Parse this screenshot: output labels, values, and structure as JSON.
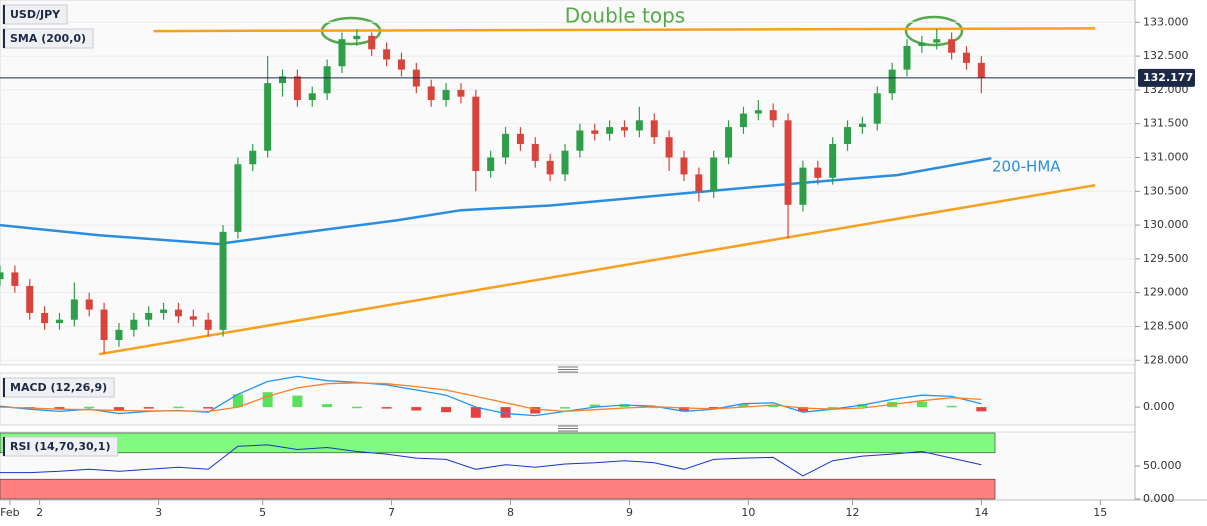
{
  "chart_data": [
    {
      "type": "candlestick",
      "labels": [
        "USD/JPY",
        "SMA (200,0)"
      ],
      "x": [
        0,
        3,
        6,
        9,
        12,
        15,
        18,
        21,
        24,
        27,
        30,
        33,
        36,
        39,
        42,
        45,
        48,
        51,
        54,
        57,
        60,
        63,
        66,
        69,
        72,
        75,
        78,
        81,
        84,
        87,
        90,
        93,
        96,
        99,
        102,
        105,
        108,
        111,
        114,
        117,
        120,
        123,
        126,
        129,
        132,
        135,
        138,
        141,
        144,
        147,
        150,
        153,
        156,
        159,
        162,
        165,
        168,
        171,
        174,
        177,
        180,
        183,
        186,
        189,
        192,
        195,
        198
      ],
      "open": [
        129.2,
        129.3,
        129.1,
        128.7,
        128.55,
        128.6,
        128.9,
        128.75,
        128.3,
        128.45,
        128.6,
        128.7,
        128.75,
        128.65,
        128.6,
        128.45,
        129.9,
        130.9,
        131.1,
        132.1,
        132.2,
        131.85,
        131.95,
        132.35,
        132.75,
        132.8,
        132.6,
        132.45,
        132.3,
        132.05,
        131.85,
        132.0,
        131.9,
        130.8,
        131.0,
        131.35,
        131.2,
        130.95,
        130.75,
        131.1,
        131.4,
        131.35,
        131.45,
        131.4,
        131.55,
        131.3,
        131.0,
        130.75,
        130.5,
        131.0,
        131.45,
        131.65,
        131.7,
        131.55,
        130.3,
        130.85,
        130.7,
        131.2,
        131.45,
        131.5,
        131.95,
        132.3,
        132.65,
        132.7,
        132.75,
        132.55,
        132.4
      ],
      "high": [
        129.4,
        129.4,
        129.2,
        128.8,
        128.7,
        129.15,
        129.0,
        128.85,
        128.55,
        128.7,
        128.8,
        128.85,
        128.85,
        128.75,
        128.7,
        130.0,
        131.0,
        131.2,
        132.5,
        132.3,
        132.3,
        132.05,
        132.45,
        132.85,
        132.9,
        132.85,
        132.7,
        132.55,
        132.4,
        132.15,
        132.1,
        132.1,
        132.0,
        131.1,
        131.45,
        131.45,
        131.3,
        131.05,
        131.2,
        131.5,
        131.5,
        131.55,
        131.55,
        131.75,
        131.65,
        131.4,
        131.1,
        130.85,
        131.1,
        131.55,
        131.75,
        131.85,
        131.8,
        131.65,
        130.95,
        130.95,
        131.3,
        131.55,
        131.6,
        132.05,
        132.4,
        132.75,
        132.8,
        132.9,
        132.85,
        132.65,
        132.5
      ],
      "low": [
        129.1,
        129.0,
        128.6,
        128.45,
        128.45,
        128.5,
        128.65,
        128.1,
        128.2,
        128.35,
        128.5,
        128.6,
        128.55,
        128.5,
        128.35,
        128.35,
        129.8,
        130.8,
        131.0,
        131.9,
        131.75,
        131.75,
        131.85,
        132.25,
        132.65,
        132.5,
        132.35,
        132.2,
        131.95,
        131.75,
        131.75,
        131.8,
        130.5,
        130.7,
        130.9,
        131.1,
        130.85,
        130.65,
        130.65,
        131.0,
        131.25,
        131.25,
        131.3,
        131.3,
        131.2,
        130.8,
        130.65,
        130.35,
        130.4,
        130.9,
        131.35,
        131.55,
        131.45,
        129.8,
        130.2,
        130.6,
        130.6,
        131.1,
        131.35,
        131.4,
        131.85,
        132.2,
        132.55,
        132.6,
        132.45,
        132.3,
        131.95
      ],
      "close": [
        129.3,
        129.1,
        128.7,
        128.55,
        128.6,
        128.9,
        128.75,
        128.3,
        128.45,
        128.6,
        128.7,
        128.75,
        128.65,
        128.6,
        128.45,
        129.9,
        130.9,
        131.1,
        132.1,
        132.2,
        131.85,
        131.95,
        132.35,
        132.75,
        132.8,
        132.6,
        132.45,
        132.3,
        132.05,
        131.85,
        132.0,
        131.9,
        130.8,
        131.0,
        131.35,
        131.2,
        130.95,
        130.75,
        131.1,
        131.4,
        131.35,
        131.45,
        131.4,
        131.55,
        131.3,
        131.0,
        130.75,
        130.5,
        131.0,
        131.45,
        131.65,
        131.7,
        131.55,
        130.3,
        130.85,
        130.7,
        131.2,
        131.45,
        131.5,
        131.95,
        132.3,
        132.65,
        132.7,
        132.75,
        132.55,
        132.4,
        132.18
      ],
      "up_color": "#2e9e48",
      "down_color": "#d9443a",
      "series": [
        {
          "name": "200-HMA",
          "color": "#2a8ee0",
          "x": [
            0,
            20,
            44,
            60,
            80,
            93,
            111,
            141,
            161,
            181,
            200
          ],
          "values": [
            130.0,
            129.85,
            129.72,
            129.88,
            130.07,
            130.22,
            130.29,
            130.49,
            130.62,
            130.74,
            130.99
          ]
        }
      ],
      "trendlines": [
        {
          "color": "#f7a01d",
          "x": [
            31,
            221
          ],
          "values": [
            132.87,
            132.91
          ]
        },
        {
          "color": "#f7a01d",
          "x": [
            20,
            221
          ],
          "values": [
            128.09,
            130.59
          ]
        }
      ],
      "annotations": [
        {
          "text": "Double tops",
          "color": "#55a94a"
        }
      ],
      "last_price": 132.177,
      "price_color": "#1c2a48",
      "xlim": [
        0,
        229
      ],
      "ylim": [
        127.93,
        133.33
      ],
      "yticks": [
        {
          "value": 128,
          "label": "128.000"
        },
        {
          "value": 128.5,
          "label": "128.500"
        },
        {
          "value": 129,
          "label": "129.000"
        },
        {
          "value": 129.5,
          "label": "129.500"
        },
        {
          "value": 130,
          "label": "130.000"
        },
        {
          "value": 130.5,
          "label": "130.500"
        },
        {
          "value": 131,
          "label": "131.000"
        },
        {
          "value": 131.5,
          "label": "131.500"
        },
        {
          "value": 132,
          "label": "132.000"
        },
        {
          "value": 132.5,
          "label": "132.500"
        },
        {
          "value": 133,
          "label": "133.000"
        }
      ],
      "grid": true
    },
    {
      "type": "macd",
      "labels": [
        "MACD (12,26,9)"
      ],
      "x": [
        0,
        6,
        12,
        18,
        24,
        30,
        36,
        42,
        48,
        54,
        60,
        66,
        72,
        78,
        84,
        90,
        96,
        102,
        108,
        114,
        120,
        126,
        132,
        138,
        144,
        150,
        156,
        162,
        168,
        174,
        180,
        186,
        192,
        198
      ],
      "series": [
        {
          "color": "#2196f3",
          "values": [
            0.02,
            -0.05,
            -0.1,
            -0.05,
            -0.15,
            -0.1,
            -0.08,
            -0.12,
            0.3,
            0.6,
            0.72,
            0.62,
            0.58,
            0.52,
            0.4,
            0.28,
            0.0,
            -0.15,
            -0.2,
            -0.1,
            0.0,
            0.05,
            0.02,
            -0.1,
            -0.05,
            0.08,
            0.1,
            -0.12,
            -0.05,
            0.05,
            0.18,
            0.28,
            0.25,
            0.08
          ]
        },
        {
          "color": "#ff7f27",
          "values": [
            0.0,
            -0.02,
            -0.05,
            -0.06,
            -0.08,
            -0.09,
            -0.09,
            -0.1,
            0.0,
            0.25,
            0.45,
            0.55,
            0.57,
            0.55,
            0.48,
            0.4,
            0.25,
            0.1,
            -0.05,
            -0.1,
            -0.06,
            -0.02,
            0.01,
            -0.02,
            -0.04,
            0.0,
            0.05,
            -0.02,
            -0.05,
            -0.02,
            0.06,
            0.15,
            0.22,
            0.18
          ]
        }
      ],
      "histogram": {
        "values": [
          0.02,
          -0.03,
          -0.05,
          0.01,
          -0.07,
          -0.01,
          0.01,
          -0.02,
          0.3,
          0.35,
          0.27,
          0.07,
          0.01,
          -0.03,
          -0.08,
          -0.12,
          -0.25,
          -0.25,
          -0.15,
          0.0,
          0.06,
          0.07,
          0.01,
          -0.08,
          -0.01,
          0.08,
          0.05,
          -0.1,
          0.0,
          0.07,
          0.12,
          0.13,
          0.03,
          -0.1
        ],
        "positive_color": "#3ddc3d",
        "negative_color": "#e02020"
      },
      "xlim": [
        0,
        229
      ],
      "ylim": [
        -0.42,
        0.8
      ],
      "yticks": [
        {
          "value": 0,
          "label": "0.000"
        }
      ]
    },
    {
      "type": "line",
      "labels": [
        "RSI (14,70,30,1)"
      ],
      "x": [
        0,
        6,
        12,
        18,
        24,
        30,
        36,
        42,
        48,
        54,
        60,
        66,
        72,
        78,
        84,
        90,
        96,
        102,
        108,
        114,
        120,
        126,
        132,
        138,
        144,
        150,
        156,
        162,
        168,
        174,
        180,
        186,
        192,
        198
      ],
      "series": [
        {
          "color": "#1836c4",
          "values": [
            40,
            40,
            42,
            45,
            42,
            45,
            48,
            45,
            80,
            82,
            75,
            78,
            72,
            68,
            62,
            60,
            45,
            52,
            48,
            53,
            55,
            58,
            55,
            45,
            60,
            62,
            63,
            35,
            58,
            65,
            68,
            72,
            62,
            52
          ]
        }
      ],
      "bands": [
        {
          "from": 70,
          "to": 100,
          "color": "#80fb80"
        },
        {
          "from": 0,
          "to": 30,
          "color": "#ff8080"
        }
      ],
      "xlim": [
        0,
        229
      ],
      "ylim": [
        -1.5,
        101.5
      ],
      "yticks": [
        {
          "value": 0,
          "label": "0.000"
        },
        {
          "value": 50,
          "label": "50.000"
        }
      ],
      "xticks": [
        {
          "value": 2,
          "label": "Feb"
        },
        {
          "value": 8,
          "label": "2"
        },
        {
          "value": 32,
          "label": "3"
        },
        {
          "value": 53,
          "label": "5"
        },
        {
          "value": 79,
          "label": "7"
        },
        {
          "value": 103,
          "label": "8"
        },
        {
          "value": 127,
          "label": "9"
        },
        {
          "value": 151,
          "label": "10"
        },
        {
          "value": 172,
          "label": "12"
        },
        {
          "value": 198,
          "label": "14"
        },
        {
          "value": 222,
          "label": "15"
        }
      ]
    }
  ]
}
